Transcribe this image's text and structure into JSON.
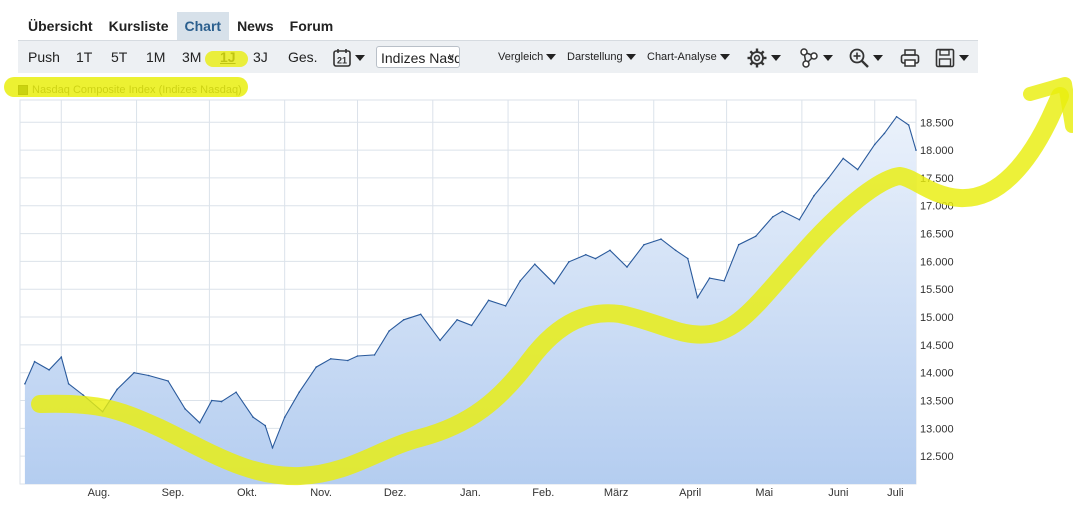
{
  "nav": [
    {
      "label": "Übersicht",
      "active": false
    },
    {
      "label": "Kursliste",
      "active": false
    },
    {
      "label": "Chart",
      "active": true
    },
    {
      "label": "News",
      "active": false
    },
    {
      "label": "Forum",
      "active": false
    }
  ],
  "toolbar": {
    "ranges": [
      "Push",
      "1T",
      "5T",
      "1M",
      "3M",
      "1J",
      "3J",
      "Ges."
    ],
    "selected_range": "1J",
    "calendar_day": "21",
    "index_select": "Indizes Nasdaq",
    "menus": [
      "Vergleich",
      "Darstellung",
      "Chart-Analyse"
    ],
    "icons": [
      "gear-icon",
      "network-icon",
      "zoom-in-icon",
      "printer-icon",
      "save-icon"
    ]
  },
  "legend": {
    "label": "Nasdaq Composite Index (Indizes Nasdaq)",
    "color": "#1f3b1f"
  },
  "colors": {
    "line": "#2a5a9c",
    "area_top": "#eaf1fb",
    "area_bottom": "#b4cdf0",
    "grid": "#dbe2ea",
    "highlight": "#e9ee0e"
  },
  "chart_data": {
    "type": "area",
    "series": [
      {
        "name": "Nasdaq Composite Index (Indizes Nasdaq)",
        "x": [
          "2023-07-17",
          "2023-07-21",
          "2023-07-27",
          "2023-08-01",
          "2023-08-04",
          "2023-08-10",
          "2023-08-18",
          "2023-08-24",
          "2023-08-31",
          "2023-09-06",
          "2023-09-14",
          "2023-09-21",
          "2023-09-27",
          "2023-10-02",
          "2023-10-06",
          "2023-10-12",
          "2023-10-19",
          "2023-10-24",
          "2023-10-27",
          "2023-11-01",
          "2023-11-07",
          "2023-11-14",
          "2023-11-20",
          "2023-11-27",
          "2023-12-01",
          "2023-12-08",
          "2023-12-14",
          "2023-12-20",
          "2023-12-27",
          "2024-01-04",
          "2024-01-11",
          "2024-01-17",
          "2024-01-24",
          "2024-01-31",
          "2024-02-06",
          "2024-02-12",
          "2024-02-20",
          "2024-02-26",
          "2024-03-04",
          "2024-03-08",
          "2024-03-14",
          "2024-03-21",
          "2024-03-28",
          "2024-04-04",
          "2024-04-10",
          "2024-04-15",
          "2024-04-19",
          "2024-04-24",
          "2024-04-30",
          "2024-05-06",
          "2024-05-13",
          "2024-05-20",
          "2024-05-24",
          "2024-05-31",
          "2024-06-06",
          "2024-06-12",
          "2024-06-18",
          "2024-06-24",
          "2024-07-01",
          "2024-07-05",
          "2024-07-10",
          "2024-07-15",
          "2024-07-18"
        ],
        "y": [
          13800,
          14200,
          14050,
          14280,
          13800,
          13600,
          13300,
          13700,
          14000,
          13950,
          13850,
          13350,
          13100,
          13500,
          13480,
          13650,
          13200,
          13050,
          12650,
          13200,
          13650,
          14100,
          14250,
          14220,
          14300,
          14320,
          14750,
          14950,
          15050,
          14580,
          14950,
          14850,
          15300,
          15200,
          15650,
          15950,
          15600,
          15990,
          16120,
          16050,
          16200,
          15900,
          16300,
          16400,
          16200,
          16050,
          15350,
          15700,
          15650,
          16300,
          16450,
          16800,
          16900,
          16750,
          17180,
          17500,
          17850,
          17650,
          18100,
          18300,
          18600,
          18450,
          18000
        ]
      }
    ],
    "xticks": [
      "Aug.",
      "Sep.",
      "Okt.",
      "Nov.",
      "Dez.",
      "Jan.",
      "Feb.",
      "März",
      "April",
      "Mai",
      "Juni",
      "Juli"
    ],
    "yticks": [
      12500,
      13000,
      13500,
      14000,
      14500,
      15000,
      15500,
      16000,
      16500,
      17000,
      17500,
      18000,
      18500
    ],
    "ytick_labels": [
      "12.500",
      "13.000",
      "13.500",
      "14.000",
      "14.500",
      "15.000",
      "15.500",
      "16.000",
      "16.500",
      "17.000",
      "17.500",
      "18.000",
      "18.500"
    ],
    "ylim": [
      12000,
      18900
    ],
    "xlim": [
      "2023-07-15",
      "2024-07-18"
    ],
    "grid": true,
    "y_axis_side": "right",
    "legend_position": "top-left"
  }
}
